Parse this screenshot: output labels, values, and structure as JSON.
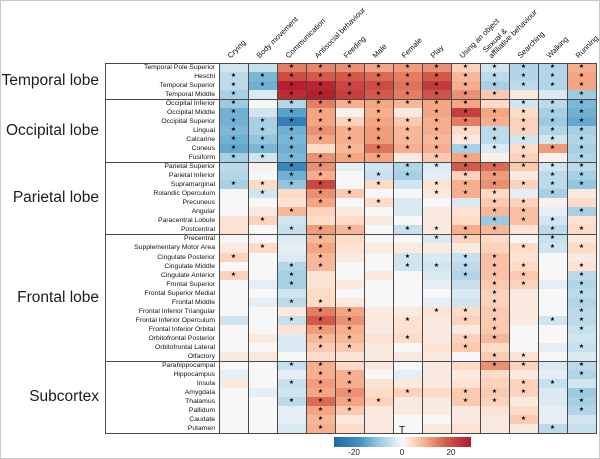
{
  "chart_data": {
    "type": "heatmap",
    "title": "",
    "colorbar": {
      "label": "T",
      "ticks": [
        "-20",
        "0",
        "20"
      ],
      "vmin": -28,
      "vmax": 28,
      "colors": {
        "negative": "#2166ac",
        "midpoint": "#f7f7f7",
        "positive": "#b2182b"
      }
    },
    "columns": [
      "Crying",
      "Body movement",
      "Communication",
      "Antisocial behaviour",
      "Feeding",
      "Male",
      "Female",
      "Play",
      "Using an object",
      "Sexual &\naffiliative behaviour",
      "Searching",
      "Walking",
      "Running"
    ],
    "row_groups": [
      {
        "label": "Temporal lobe",
        "rows": [
          "Temporal Pole Superior",
          "Heschl",
          "Temporal Superior",
          "Temporal Middle"
        ]
      },
      {
        "label": "Occipital lobe",
        "rows": [
          "Occipital Inferior",
          "Occipital Middle",
          "Occipital Superior",
          "Lingual",
          "Calcarine",
          "Cuneus",
          "Fusiform"
        ]
      },
      {
        "label": "Parietal lobe",
        "rows": [
          "Parietal Superior",
          "Parietal Inferior",
          "Supramarginal",
          "Rolandic Operculum",
          "Precuneus",
          "Angular",
          "Paracentral Lobule",
          "Postcentral"
        ]
      },
      {
        "label": "Frontal lobe",
        "rows": [
          "Precentral",
          "Supplementary Motor Area",
          "Cingulate Posterior",
          "Cingulate Middle",
          "Cingulate Anterior",
          "Frontal Superior",
          "Frontal Superior Medial",
          "Frontal Middle",
          "Frontal Inferior Triangular",
          "Frontal Inferior Operculum",
          "Frontal Inferior Orbital",
          "Orbitofrontal Posterior",
          "Orbitofrontal Lateral",
          "Olfactory"
        ]
      },
      {
        "label": "Subcortex",
        "rows": [
          "Parahippocampal",
          "Hippocampus",
          "Insula",
          "Amygdala",
          "Thalamus",
          "Pallidum",
          "Caudate",
          "Putamen"
        ]
      }
    ],
    "values": [
      [
        -4,
        -5,
        14,
        13,
        12,
        10,
        11,
        12,
        5,
        -4,
        -7,
        -7,
        9
      ],
      [
        -6,
        -12,
        20,
        18,
        18,
        16,
        14,
        18,
        8,
        -6,
        -7,
        -7,
        10
      ],
      [
        -6,
        -13,
        27,
        26,
        21,
        20,
        15,
        23,
        9,
        -8,
        -6,
        -7,
        10
      ],
      [
        -8,
        -3,
        25,
        27,
        22,
        18,
        14,
        19,
        12,
        6,
        2,
        -3,
        -9
      ],
      [
        -9,
        0,
        -7,
        14,
        9,
        10,
        8,
        10,
        10,
        4,
        -4,
        -6,
        -12
      ],
      [
        -13,
        -4,
        -15,
        10,
        1,
        9,
        2,
        10,
        22,
        10,
        4,
        -8,
        -13
      ],
      [
        -13,
        -8,
        -22,
        10,
        5,
        10,
        6,
        9,
        14,
        9,
        5,
        -9,
        -14
      ],
      [
        -12,
        -8,
        -13,
        12,
        9,
        11,
        8,
        9,
        4,
        -6,
        5,
        -7,
        -8
      ],
      [
        -13,
        -10,
        -12,
        10,
        9,
        11,
        8,
        8,
        2,
        -6,
        -4,
        -4,
        -7
      ],
      [
        -14,
        -12,
        -13,
        4,
        8,
        15,
        9,
        9,
        -8,
        -3,
        4,
        11,
        -8
      ],
      [
        -8,
        -4,
        -12,
        12,
        10,
        10,
        2,
        6,
        10,
        1,
        5,
        1,
        -7
      ],
      [
        -6,
        1,
        -20,
        12,
        -2,
        -4,
        -7,
        -3,
        18,
        16,
        6,
        -4,
        -6
      ],
      [
        -7,
        0,
        -13,
        9,
        0,
        -5,
        -8,
        -2,
        5,
        11,
        2,
        -6,
        -8
      ],
      [
        -8,
        4,
        -10,
        21,
        0,
        4,
        -4,
        3,
        9,
        12,
        5,
        -6,
        -10
      ],
      [
        0,
        -4,
        4,
        12,
        6,
        0,
        0,
        2,
        9,
        4,
        -2,
        -8,
        2
      ],
      [
        0,
        0,
        3,
        10,
        0,
        4,
        -3,
        0,
        -3,
        6,
        5,
        1,
        4
      ],
      [
        0,
        2,
        8,
        5,
        2,
        0,
        -3,
        2,
        3,
        8,
        7,
        -2,
        -8
      ],
      [
        3,
        5,
        -4,
        4,
        4,
        2,
        0,
        2,
        4,
        -9,
        7,
        -4,
        3
      ],
      [
        3,
        0,
        -5,
        11,
        8,
        0,
        -5,
        2,
        9,
        8,
        3,
        -6,
        4
      ],
      [
        0,
        0,
        -3,
        8,
        4,
        0,
        0,
        -3,
        5,
        4,
        0,
        -5,
        2
      ],
      [
        2,
        4,
        -2,
        10,
        3,
        2,
        2,
        2,
        2,
        5,
        4,
        -4,
        4
      ],
      [
        5,
        0,
        -3,
        8,
        2,
        0,
        -4,
        -3,
        -5,
        7,
        3,
        0,
        2
      ],
      [
        0,
        0,
        -7,
        8,
        0,
        0,
        -4,
        -4,
        -6,
        7,
        4,
        0,
        3
      ],
      [
        5,
        0,
        -8,
        3,
        0,
        2,
        0,
        -3,
        -7,
        7,
        6,
        0,
        -6
      ],
      [
        0,
        -2,
        -8,
        3,
        2,
        0,
        0,
        -2,
        -5,
        6,
        5,
        -2,
        -7
      ],
      [
        0,
        0,
        -4,
        4,
        0,
        0,
        0,
        0,
        -3,
        5,
        2,
        0,
        -6
      ],
      [
        0,
        -2,
        -6,
        4,
        2,
        0,
        0,
        -2,
        -4,
        5,
        2,
        0,
        -7
      ],
      [
        0,
        0,
        2,
        14,
        10,
        2,
        2,
        3,
        4,
        6,
        2,
        0,
        -6
      ],
      [
        -4,
        0,
        -5,
        18,
        12,
        2,
        3,
        2,
        5,
        6,
        2,
        -4,
        -6
      ],
      [
        0,
        0,
        3,
        11,
        9,
        2,
        3,
        2,
        2,
        6,
        0,
        0,
        -5
      ],
      [
        0,
        2,
        -3,
        8,
        8,
        3,
        4,
        2,
        5,
        8,
        0,
        0,
        -4
      ],
      [
        0,
        0,
        -3,
        6,
        6,
        2,
        0,
        3,
        6,
        4,
        0,
        -2,
        -5
      ],
      [
        2,
        2,
        0,
        4,
        3,
        2,
        2,
        2,
        0,
        6,
        3,
        0,
        -3
      ],
      [
        0,
        0,
        -5,
        9,
        4,
        2,
        0,
        2,
        4,
        12,
        5,
        -3,
        -6
      ],
      [
        -2,
        0,
        -2,
        9,
        9,
        0,
        -2,
        2,
        2,
        4,
        2,
        -2,
        -7
      ],
      [
        2,
        0,
        -5,
        11,
        9,
        3,
        2,
        2,
        3,
        5,
        5,
        -5,
        -4
      ],
      [
        0,
        -2,
        -4,
        10,
        12,
        4,
        5,
        4,
        6,
        6,
        5,
        -3,
        -9
      ],
      [
        0,
        0,
        -6,
        16,
        10,
        5,
        2,
        2,
        6,
        5,
        2,
        -3,
        -8
      ],
      [
        0,
        0,
        -2,
        10,
        6,
        2,
        2,
        2,
        2,
        3,
        4,
        -2,
        -7
      ],
      [
        0,
        0,
        -2,
        8,
        2,
        2,
        0,
        0,
        2,
        2,
        6,
        -2,
        -4
      ],
      [
        0,
        0,
        -3,
        9,
        4,
        2,
        0,
        2,
        3,
        2,
        2,
        -6,
        -5
      ]
    ],
    "significant": [
      [
        0,
        0,
        1,
        1,
        1,
        1,
        1,
        1,
        1,
        1,
        1,
        1,
        1
      ],
      [
        1,
        1,
        1,
        1,
        1,
        1,
        1,
        1,
        1,
        1,
        1,
        1,
        1
      ],
      [
        1,
        1,
        1,
        1,
        1,
        1,
        1,
        1,
        1,
        1,
        1,
        1,
        1
      ],
      [
        1,
        0,
        1,
        1,
        1,
        1,
        1,
        1,
        1,
        1,
        0,
        0,
        1
      ],
      [
        1,
        0,
        1,
        1,
        1,
        1,
        1,
        1,
        1,
        0,
        1,
        1,
        1
      ],
      [
        1,
        0,
        1,
        1,
        0,
        1,
        0,
        1,
        1,
        1,
        1,
        1,
        1
      ],
      [
        1,
        1,
        1,
        1,
        1,
        1,
        1,
        1,
        1,
        1,
        1,
        1,
        1
      ],
      [
        1,
        1,
        1,
        1,
        1,
        1,
        1,
        1,
        1,
        1,
        1,
        1,
        1
      ],
      [
        1,
        1,
        1,
        1,
        1,
        1,
        1,
        1,
        1,
        1,
        1,
        1,
        1
      ],
      [
        1,
        1,
        1,
        0,
        1,
        1,
        1,
        1,
        1,
        1,
        1,
        1,
        1
      ],
      [
        1,
        1,
        1,
        1,
        1,
        1,
        0,
        1,
        1,
        0,
        1,
        0,
        1
      ],
      [
        0,
        0,
        1,
        1,
        0,
        0,
        1,
        1,
        1,
        1,
        1,
        1,
        1
      ],
      [
        0,
        0,
        1,
        1,
        0,
        1,
        1,
        0,
        1,
        1,
        0,
        1,
        1
      ],
      [
        1,
        1,
        1,
        1,
        0,
        1,
        0,
        1,
        1,
        1,
        1,
        1,
        1
      ],
      [
        0,
        1,
        0,
        1,
        1,
        0,
        0,
        1,
        1,
        1,
        0,
        1,
        0
      ],
      [
        0,
        0,
        0,
        1,
        0,
        1,
        0,
        0,
        0,
        1,
        1,
        0,
        0
      ],
      [
        0,
        0,
        1,
        0,
        0,
        0,
        0,
        0,
        0,
        1,
        1,
        0,
        1
      ],
      [
        0,
        1,
        0,
        0,
        0,
        0,
        0,
        0,
        0,
        1,
        1,
        1,
        0
      ],
      [
        0,
        0,
        1,
        1,
        1,
        0,
        1,
        1,
        1,
        1,
        0,
        1,
        1
      ],
      [
        0,
        0,
        0,
        1,
        0,
        0,
        0,
        1,
        1,
        0,
        0,
        1,
        0
      ],
      [
        0,
        1,
        0,
        1,
        0,
        0,
        0,
        0,
        0,
        0,
        1,
        1,
        1
      ],
      [
        1,
        0,
        0,
        1,
        0,
        0,
        1,
        0,
        1,
        1,
        0,
        0,
        0
      ],
      [
        0,
        0,
        1,
        1,
        0,
        0,
        1,
        1,
        1,
        1,
        1,
        0,
        1
      ],
      [
        1,
        0,
        1,
        0,
        0,
        0,
        0,
        0,
        1,
        1,
        1,
        0,
        1
      ],
      [
        0,
        0,
        1,
        0,
        0,
        0,
        0,
        0,
        0,
        1,
        1,
        0,
        1
      ],
      [
        0,
        0,
        0,
        0,
        0,
        0,
        0,
        0,
        0,
        1,
        0,
        0,
        1
      ],
      [
        0,
        0,
        1,
        1,
        0,
        0,
        0,
        0,
        0,
        1,
        0,
        0,
        1
      ],
      [
        0,
        0,
        0,
        1,
        1,
        0,
        0,
        1,
        1,
        1,
        0,
        0,
        1
      ],
      [
        0,
        0,
        1,
        1,
        1,
        0,
        1,
        0,
        1,
        1,
        0,
        1,
        1
      ],
      [
        0,
        0,
        0,
        1,
        1,
        0,
        0,
        0,
        0,
        1,
        0,
        0,
        1
      ],
      [
        0,
        0,
        0,
        1,
        1,
        0,
        1,
        0,
        1,
        1,
        0,
        0,
        0
      ],
      [
        0,
        0,
        0,
        1,
        1,
        0,
        0,
        0,
        1,
        0,
        0,
        0,
        1
      ],
      [
        0,
        0,
        0,
        0,
        0,
        0,
        0,
        0,
        0,
        1,
        1,
        0,
        0
      ],
      [
        0,
        0,
        1,
        1,
        0,
        0,
        0,
        0,
        0,
        1,
        1,
        0,
        1
      ],
      [
        0,
        0,
        0,
        1,
        1,
        0,
        0,
        0,
        0,
        0,
        0,
        0,
        1
      ],
      [
        0,
        0,
        1,
        1,
        1,
        0,
        0,
        0,
        0,
        0,
        1,
        1,
        0
      ],
      [
        0,
        0,
        0,
        1,
        1,
        0,
        1,
        0,
        1,
        1,
        1,
        0,
        1
      ],
      [
        0,
        0,
        1,
        1,
        1,
        1,
        0,
        0,
        1,
        1,
        0,
        0,
        1
      ],
      [
        0,
        0,
        0,
        1,
        1,
        0,
        0,
        0,
        0,
        0,
        0,
        0,
        1
      ],
      [
        0,
        0,
        0,
        1,
        0,
        0,
        0,
        0,
        0,
        0,
        1,
        0,
        0
      ],
      [
        0,
        0,
        0,
        1,
        0,
        0,
        0,
        0,
        0,
        0,
        0,
        1,
        0
      ]
    ]
  }
}
